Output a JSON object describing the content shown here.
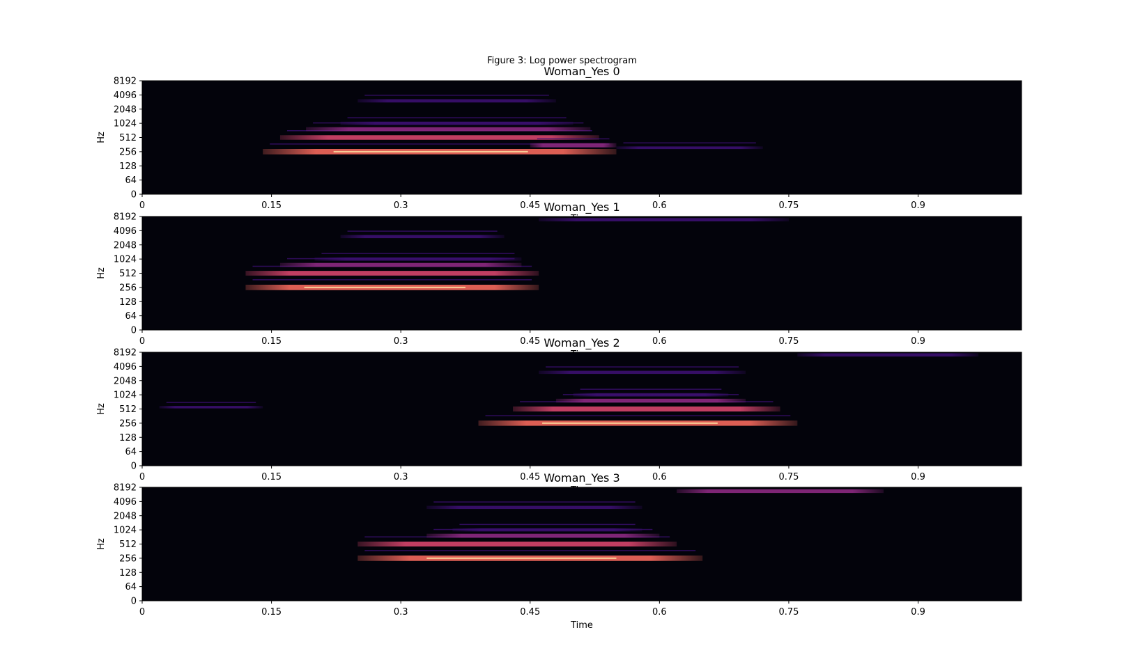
{
  "figure": {
    "suptitle": "Figure 3: Log power spectrogram",
    "colors": {
      "background": "#03030b",
      "low": "#3b0f70",
      "mid": "#8c2981",
      "high": "#f4685c",
      "peak": "#fde2a3"
    }
  },
  "chart_data": [
    {
      "type": "heatmap",
      "title": "Woman_Yes 0",
      "xlabel": "Time",
      "ylabel": "Hz",
      "xlim": [
        0,
        1.02
      ],
      "yscale": "log2",
      "xticks": [
        "0",
        "0.15",
        "0.3",
        "0.45",
        "0.6",
        "0.75",
        "0.9"
      ],
      "yticks": [
        "0",
        "64",
        "128",
        "256",
        "512",
        "1024",
        "2048",
        "4096",
        "8192"
      ],
      "harmonics": [
        {
          "f": 256,
          "t0": 0.14,
          "t1": 0.55,
          "level": 0.95
        },
        {
          "f": 512,
          "t0": 0.16,
          "t1": 0.53,
          "level": 0.7
        },
        {
          "f": 768,
          "t0": 0.19,
          "t1": 0.52,
          "level": 0.55
        },
        {
          "f": 1024,
          "t0": 0.23,
          "t1": 0.5,
          "level": 0.35
        },
        {
          "f": 3072,
          "t0": 0.25,
          "t1": 0.48,
          "level": 0.35
        },
        {
          "f": 350,
          "t0": 0.45,
          "t1": 0.55,
          "level": 0.6
        },
        {
          "f": 310,
          "t0": 0.55,
          "t1": 0.72,
          "level": 0.15
        }
      ]
    },
    {
      "type": "heatmap",
      "title": "Woman_Yes 1",
      "xlabel": "Time",
      "ylabel": "Hz",
      "xlim": [
        0,
        1.02
      ],
      "yscale": "log2",
      "xticks": [
        "0",
        "0.15",
        "0.3",
        "0.45",
        "0.6",
        "0.75",
        "0.9"
      ],
      "yticks": [
        "0",
        "64",
        "128",
        "256",
        "512",
        "1024",
        "2048",
        "4096",
        "8192"
      ],
      "harmonics": [
        {
          "f": 256,
          "t0": 0.12,
          "t1": 0.46,
          "level": 0.95
        },
        {
          "f": 512,
          "t0": 0.12,
          "t1": 0.46,
          "level": 0.75
        },
        {
          "f": 768,
          "t0": 0.16,
          "t1": 0.44,
          "level": 0.55
        },
        {
          "f": 1024,
          "t0": 0.2,
          "t1": 0.44,
          "level": 0.35
        },
        {
          "f": 3072,
          "t0": 0.23,
          "t1": 0.42,
          "level": 0.3
        },
        {
          "f": 7000,
          "t0": 0.46,
          "t1": 0.75,
          "level": 0.35
        }
      ]
    },
    {
      "type": "heatmap",
      "title": "Woman_Yes 2",
      "xlabel": "Time",
      "ylabel": "Hz",
      "xlim": [
        0,
        1.02
      ],
      "yscale": "log2",
      "xticks": [
        "0",
        "0.15",
        "0.3",
        "0.45",
        "0.6",
        "0.75",
        "0.9"
      ],
      "yticks": [
        "0",
        "64",
        "128",
        "256",
        "512",
        "1024",
        "2048",
        "4096",
        "8192"
      ],
      "harmonics": [
        {
          "f": 256,
          "t0": 0.39,
          "t1": 0.76,
          "level": 0.9
        },
        {
          "f": 512,
          "t0": 0.43,
          "t1": 0.74,
          "level": 0.85
        },
        {
          "f": 768,
          "t0": 0.48,
          "t1": 0.7,
          "level": 0.5
        },
        {
          "f": 1024,
          "t0": 0.5,
          "t1": 0.68,
          "level": 0.35
        },
        {
          "f": 3072,
          "t0": 0.46,
          "t1": 0.7,
          "level": 0.3
        },
        {
          "f": 7200,
          "t0": 0.76,
          "t1": 0.97,
          "level": 0.35
        },
        {
          "f": 560,
          "t0": 0.02,
          "t1": 0.14,
          "level": 0.1
        }
      ]
    },
    {
      "type": "heatmap",
      "title": "Woman_Yes 3",
      "xlabel": "Time",
      "ylabel": "Hz",
      "xlim": [
        0,
        1.02
      ],
      "yscale": "log2",
      "xticks": [
        "0",
        "0.15",
        "0.3",
        "0.45",
        "0.6",
        "0.75",
        "0.9"
      ],
      "yticks": [
        "0",
        "64",
        "128",
        "256",
        "512",
        "1024",
        "2048",
        "4096",
        "8192"
      ],
      "harmonics": [
        {
          "f": 256,
          "t0": 0.25,
          "t1": 0.65,
          "level": 0.95
        },
        {
          "f": 512,
          "t0": 0.25,
          "t1": 0.62,
          "level": 0.8
        },
        {
          "f": 768,
          "t0": 0.33,
          "t1": 0.6,
          "level": 0.55
        },
        {
          "f": 1024,
          "t0": 0.36,
          "t1": 0.58,
          "level": 0.3
        },
        {
          "f": 3072,
          "t0": 0.33,
          "t1": 0.58,
          "level": 0.3
        },
        {
          "f": 6800,
          "t0": 0.62,
          "t1": 0.86,
          "level": 0.45
        }
      ]
    }
  ]
}
